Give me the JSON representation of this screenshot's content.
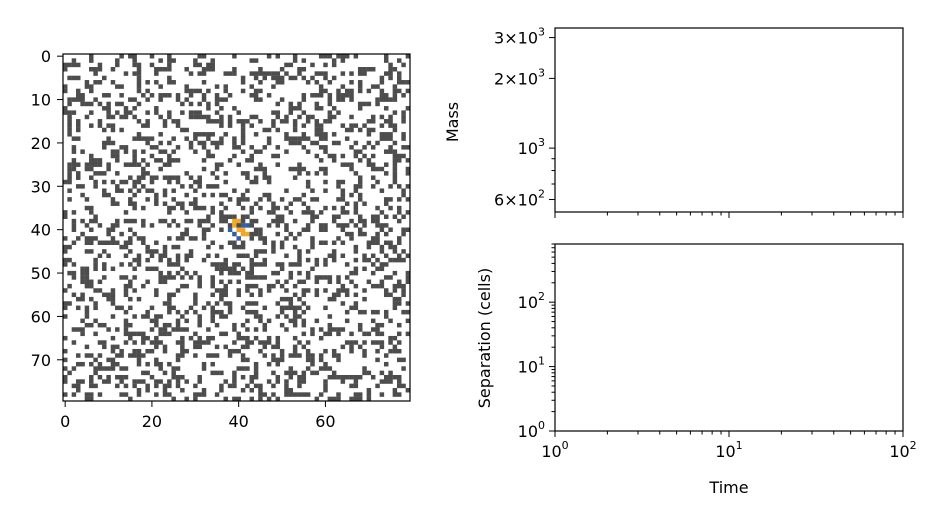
{
  "chart_data": [
    {
      "type": "heatmap",
      "title": "",
      "grid_size": [
        80,
        80
      ],
      "xlim": [
        -0.5,
        79.5
      ],
      "ylim": [
        79.5,
        -0.5
      ],
      "xticks": [
        0,
        20,
        40,
        60
      ],
      "yticks": [
        0,
        10,
        20,
        30,
        40,
        50,
        60,
        70
      ],
      "xtick_labels": [
        "0",
        "20",
        "40",
        "60"
      ],
      "ytick_labels": [
        "0",
        "10",
        "20",
        "30",
        "40",
        "50",
        "60",
        "70"
      ],
      "occupied_fraction": 0.3,
      "colors": {
        "empty": "#ffffff",
        "occupied": "#4d4d4d",
        "particle_a": "#f5a623",
        "particle_b": "#2f5fa8"
      },
      "highlight_cells": [
        {
          "x": 39,
          "y": 38,
          "kind": "a"
        },
        {
          "x": 40,
          "y": 38,
          "kind": "a"
        },
        {
          "x": 39,
          "y": 39,
          "kind": "a"
        },
        {
          "x": 41,
          "y": 39,
          "kind": "b"
        },
        {
          "x": 42,
          "y": 39,
          "kind": "b"
        },
        {
          "x": 38,
          "y": 40,
          "kind": "b"
        },
        {
          "x": 40,
          "y": 40,
          "kind": "a"
        },
        {
          "x": 41,
          "y": 40,
          "kind": "a"
        },
        {
          "x": 39,
          "y": 41,
          "kind": "b"
        },
        {
          "x": 41,
          "y": 41,
          "kind": "a"
        },
        {
          "x": 42,
          "y": 41,
          "kind": "a"
        },
        {
          "x": 40,
          "y": 42,
          "kind": "b"
        }
      ]
    },
    {
      "type": "line",
      "title": "",
      "xlabel": "",
      "ylabel": "Mass",
      "xscale": "log",
      "yscale": "log",
      "xlim": [
        1,
        100
      ],
      "ylim": [
        530,
        3300
      ],
      "yticks": [
        600,
        1000,
        2000,
        3000
      ],
      "series": []
    },
    {
      "type": "line",
      "title": "",
      "xlabel": "Time",
      "ylabel": "Separation (cells)",
      "xscale": "log",
      "yscale": "log",
      "xlim": [
        1,
        100
      ],
      "ylim": [
        1,
        800
      ],
      "xticks": [
        1,
        10,
        100
      ],
      "yticks": [
        1,
        10,
        100
      ],
      "series": []
    }
  ],
  "labels": {
    "mass_ylabel": "Mass",
    "sep_ylabel": "Separation (cells)",
    "time_xlabel": "Time"
  }
}
